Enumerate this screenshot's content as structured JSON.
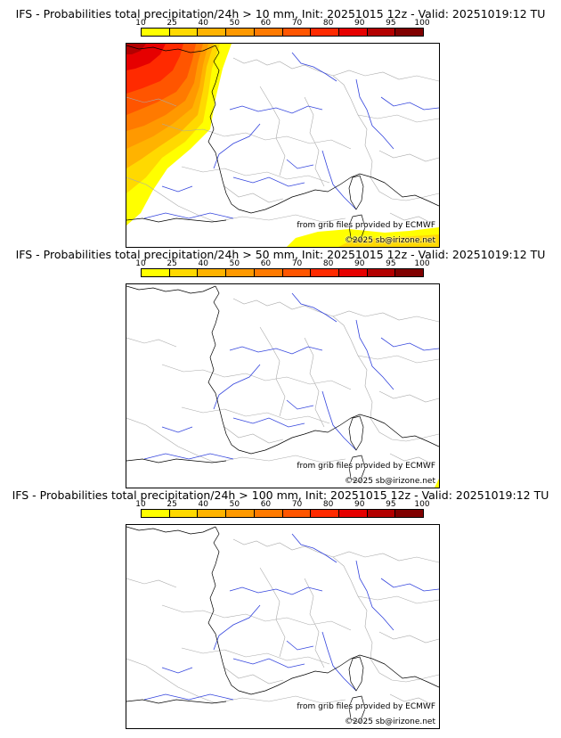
{
  "colorbar": {
    "ticks": [
      "10",
      "25",
      "40",
      "50",
      "60",
      "70",
      "80",
      "90",
      "95",
      "100"
    ],
    "colors": [
      "#ffff00",
      "#ffd900",
      "#ffb300",
      "#ff9900",
      "#ff7a00",
      "#ff5500",
      "#ff2a00",
      "#e60000",
      "#b30000",
      "#800000"
    ]
  },
  "map_colors": {
    "coast": "#000000",
    "rivers": "#3344dd",
    "borders": "#aaaaaa"
  },
  "panels": [
    {
      "title": "IFS - Probabilities total precipitation/24h > 10 mm, Init: 20251015 12z - Valid: 20251019:12 TU",
      "source_credit": "from grib files provided by ECMWF",
      "copyright": "©2025 sb@irizone.net"
    },
    {
      "title": "IFS - Probabilities total precipitation/24h > 50 mm, Init: 20251015 12z - Valid: 20251019:12 TU",
      "source_credit": "from grib files provided by ECMWF",
      "copyright": "©2025 sb@irizone.net"
    },
    {
      "title": "IFS - Probabilities total precipitation/24h > 100 mm, Init: 20251015 12z - Valid: 20251019:12 TU",
      "source_credit": "from grib files provided by ECMWF",
      "copyright": "©2025 sb@irizone.net"
    }
  ]
}
